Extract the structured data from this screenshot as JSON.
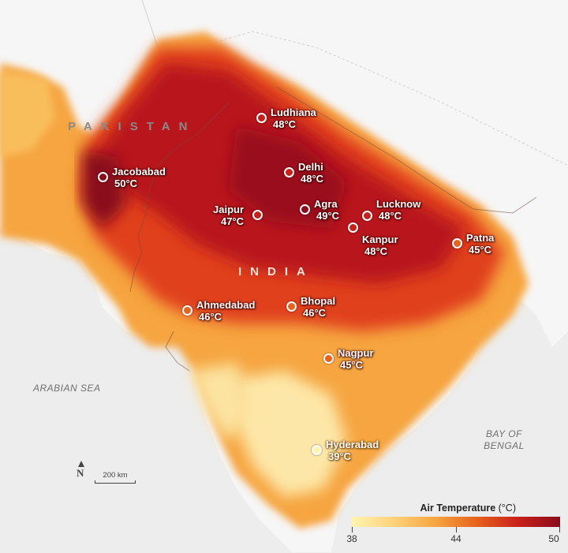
{
  "map": {
    "countries": {
      "pakistan": "PAKISTAN",
      "india": "INDIA"
    },
    "seas": {
      "arabian": "ARABIAN SEA",
      "bengal_line1": "BAY OF",
      "bengal_line2": "BENGAL"
    },
    "cities": [
      {
        "name": "Ludhiana",
        "temp": "48°C",
        "temp_c": 48
      },
      {
        "name": "Jacobabad",
        "temp": "50°C",
        "temp_c": 50
      },
      {
        "name": "Delhi",
        "temp": "48°C",
        "temp_c": 48
      },
      {
        "name": "Jaipur",
        "temp": "47°C",
        "temp_c": 47
      },
      {
        "name": "Agra",
        "temp": "49°C",
        "temp_c": 49
      },
      {
        "name": "Lucknow",
        "temp": "48°C",
        "temp_c": 48
      },
      {
        "name": "Kanpur",
        "temp": "48°C",
        "temp_c": 48
      },
      {
        "name": "Patna",
        "temp": "45°C",
        "temp_c": 45
      },
      {
        "name": "Ahmedabad",
        "temp": "46°C",
        "temp_c": 46
      },
      {
        "name": "Bhopal",
        "temp": "46°C",
        "temp_c": 46
      },
      {
        "name": "Nagpur",
        "temp": "45°C",
        "temp_c": 45
      },
      {
        "name": "Hyderabad",
        "temp": "39°C",
        "temp_c": 39
      }
    ],
    "scale_label": "200 km",
    "north_symbol": "N"
  },
  "legend": {
    "title": "Air Temperature",
    "unit": "(°C)",
    "ticks": [
      "38",
      "44",
      "50"
    ],
    "range": [
      38,
      50
    ],
    "colors": [
      "#fff4b0",
      "#fdd27c",
      "#f6a540",
      "#e7621d",
      "#c8201a",
      "#8a0d1c"
    ]
  }
}
